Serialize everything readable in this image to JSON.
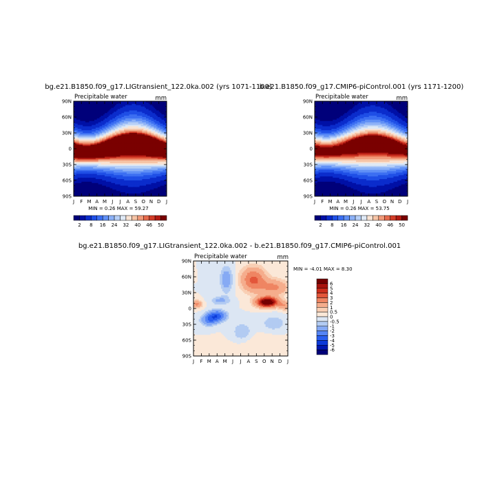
{
  "chart_data": [
    {
      "type": "heatmap",
      "title": "bg.e21.B1850.f09_g17.LIGtransient_122.0ka.002 (yrs 1071-1100)",
      "variable": "Precipitable water",
      "units": "mm",
      "x_ticks": [
        "J",
        "F",
        "M",
        "A",
        "M",
        "J",
        "J",
        "A",
        "S",
        "O",
        "N",
        "D",
        "J"
      ],
      "y_ticks": [
        "90N",
        "60N",
        "30N",
        "0",
        "30S",
        "60S",
        "90S"
      ],
      "y_range": [
        -90,
        90
      ],
      "field": {
        "peak_value": 59.27,
        "peak_month": 7.7,
        "peak_lat_amp": 6,
        "min_value": 0.26
      },
      "colorbar_labels": [
        "2",
        "8",
        "16",
        "24",
        "32",
        "40",
        "46",
        "50"
      ],
      "stats": "MIN =    0.26 MAX =   59.27",
      "levels": [
        2,
        4,
        8,
        12,
        16,
        20,
        24,
        28,
        32,
        36,
        40,
        44,
        46,
        48,
        50
      ],
      "colors": [
        "#00007a",
        "#0010a6",
        "#0b2ccc",
        "#1f4fe6",
        "#3c6ff2",
        "#6090f6",
        "#8cb1f7",
        "#b7d0f7",
        "#dfe9f5",
        "#f9e3d3",
        "#f6c4a6",
        "#f09a7a",
        "#e66a4c",
        "#d33d28",
        "#b31a12",
        "#7a0000"
      ]
    },
    {
      "type": "heatmap",
      "title": "b.e21.B1850.f09_g17.CMIP6-piControl.001 (yrs 1171-1200)",
      "variable": "Precipitable water",
      "units": "mm",
      "x_ticks": [
        "J",
        "F",
        "M",
        "A",
        "M",
        "J",
        "J",
        "A",
        "S",
        "O",
        "N",
        "D",
        "J"
      ],
      "y_ticks": [
        "90N",
        "60N",
        "30N",
        "0",
        "30S",
        "60S",
        "90S"
      ],
      "y_range": [
        -90,
        90
      ],
      "field": {
        "peak_value": 53.75,
        "peak_month": 7.5,
        "peak_lat_amp": 5,
        "min_value": 0.26
      },
      "colorbar_labels": [
        "2",
        "8",
        "16",
        "24",
        "32",
        "40",
        "46",
        "50"
      ],
      "stats": "MIN =    0.26 MAX =   53.75",
      "levels": [
        2,
        4,
        8,
        12,
        16,
        20,
        24,
        28,
        32,
        36,
        40,
        44,
        46,
        48,
        50
      ],
      "colors": [
        "#00007a",
        "#0010a6",
        "#0b2ccc",
        "#1f4fe6",
        "#3c6ff2",
        "#6090f6",
        "#8cb1f7",
        "#b7d0f7",
        "#dfe9f5",
        "#f9e3d3",
        "#f6c4a6",
        "#f09a7a",
        "#e66a4c",
        "#d33d28",
        "#b31a12",
        "#7a0000"
      ]
    },
    {
      "type": "heatmap",
      "title": "bg.e21.B1850.f09_g17.LIGtransient_122.0ka.002 - b.e21.B1850.f09_g17.CMIP6-piControl.001",
      "variable": "Precipitable water",
      "units": "mm",
      "x_ticks": [
        "J",
        "F",
        "M",
        "A",
        "M",
        "J",
        "J",
        "A",
        "S",
        "O",
        "N",
        "D",
        "J"
      ],
      "y_ticks": [
        "90N",
        "60N",
        "30N",
        "0",
        "30S",
        "60S",
        "90S"
      ],
      "y_range": [
        -90,
        90
      ],
      "field": {
        "min_value": -4.01,
        "max_value": 8.3
      },
      "colorbar_labels": [
        "6",
        "5",
        "4",
        "3",
        "2",
        "1",
        "0.5",
        "0",
        "-0.5",
        "-1",
        "-2",
        "-3",
        "-4",
        "-5",
        "-6"
      ],
      "stats": "MIN =   -4.01 MAX =    8.30",
      "levels": [
        -6,
        -5,
        -4,
        -3,
        -2,
        -1,
        -0.5,
        0,
        0.5,
        1,
        2,
        3,
        4,
        5,
        6
      ],
      "colors": [
        "#00007a",
        "#0018b0",
        "#0d3bd9",
        "#2a5ff0",
        "#5585f5",
        "#86aaf4",
        "#b2cbf2",
        "#dce6f3",
        "#fbe8d8",
        "#f9cfb4",
        "#f5ad8c",
        "#ef8562",
        "#e3563a",
        "#cc2e1c",
        "#a8130d",
        "#750000"
      ]
    }
  ]
}
